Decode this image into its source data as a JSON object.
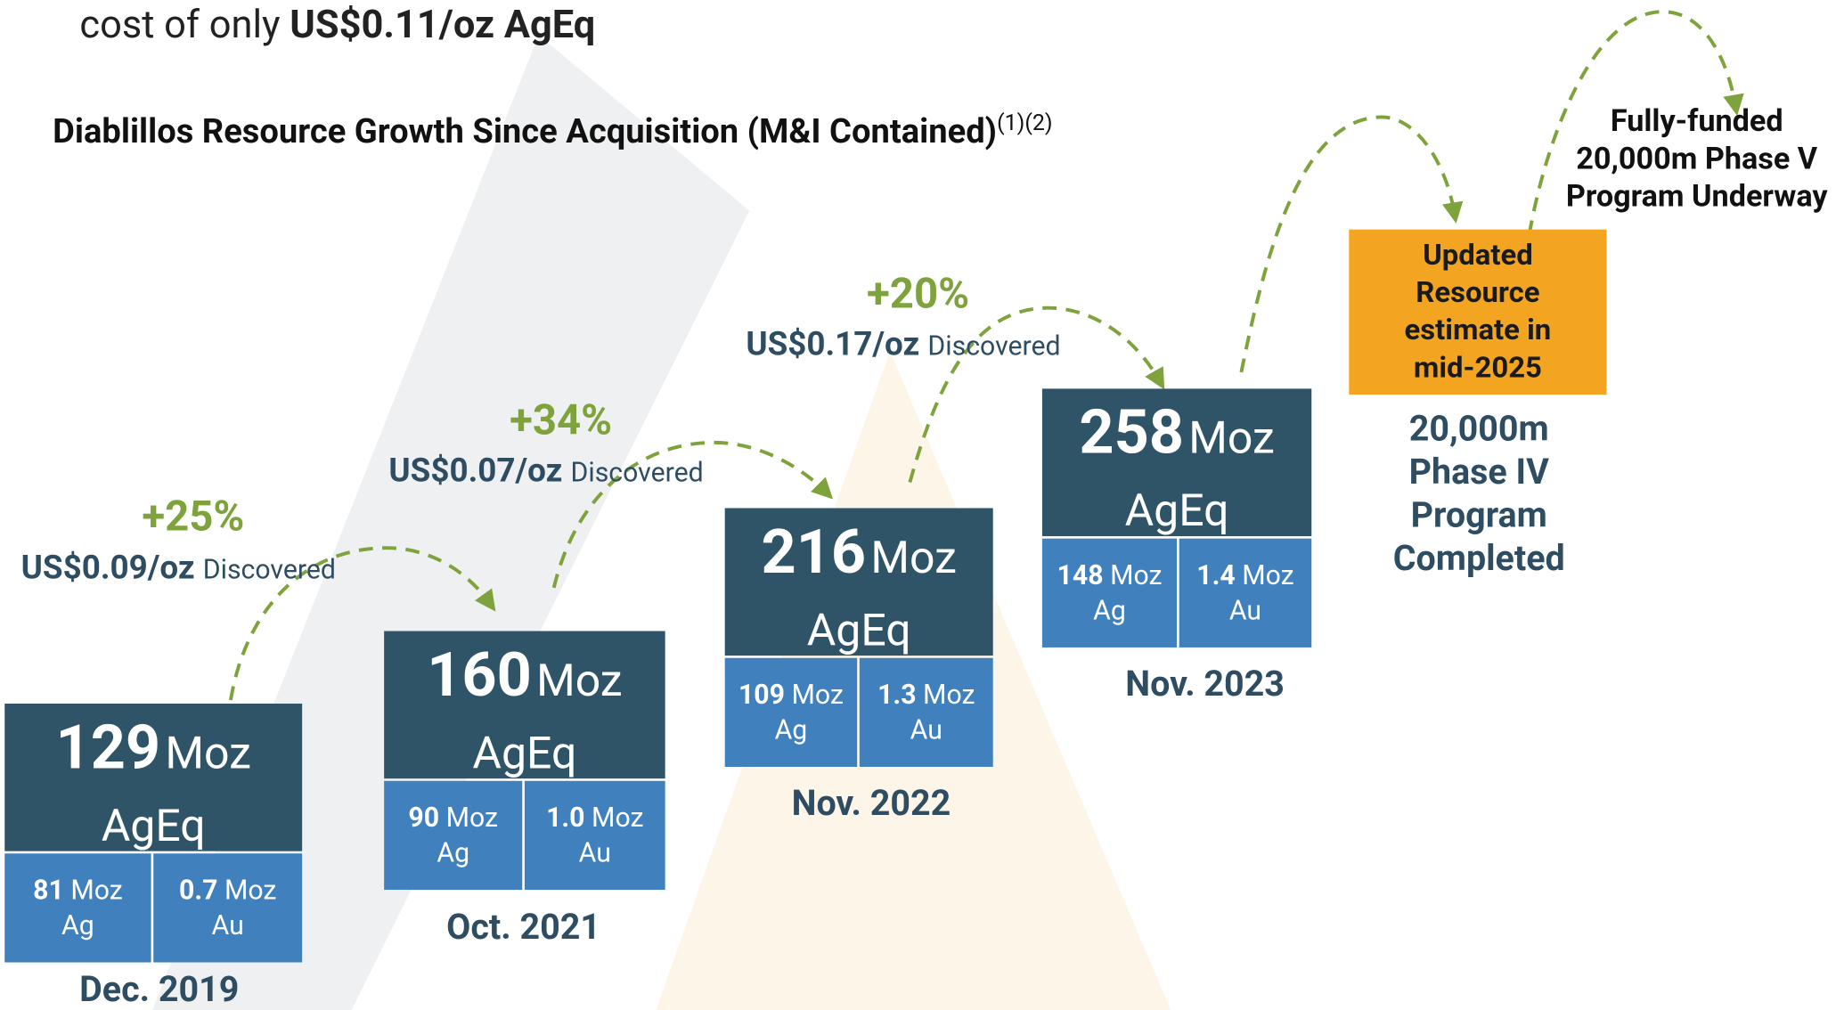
{
  "header": {
    "lead": "cost of only ",
    "emphasis": "US$0.11/oz AgEq"
  },
  "title": {
    "text": "Diablillos Resource Growth Since Acquisition (M&I Contained)",
    "superscript": "(1)(2)"
  },
  "units": {
    "total": "Moz",
    "equivalent": "AgEq",
    "ag": "Moz Ag",
    "au": "Moz Au",
    "ag_split": [
      "Moz",
      "Ag"
    ],
    "au_split": [
      "Moz",
      "Au"
    ]
  },
  "discovery_note": "Discovered",
  "stages": [
    {
      "total": "129",
      "ag": "81",
      "au": "0.7",
      "date": "Dec. 2019"
    },
    {
      "total": "160",
      "ag": "90",
      "au": "1.0",
      "date": "Oct. 2021"
    },
    {
      "total": "216",
      "ag": "109",
      "au": "1.3",
      "date": "Nov. 2022"
    },
    {
      "total": "258",
      "ag": "148",
      "au": "1.4",
      "date": "Nov. 2023"
    }
  ],
  "growth": [
    {
      "change": "+25%",
      "cost": "US$0.09/oz"
    },
    {
      "change": "+34%",
      "cost": "US$0.07/oz"
    },
    {
      "change": "+20%",
      "cost": "US$0.17/oz"
    }
  ],
  "next_step": {
    "box": [
      "Updated",
      "Resource",
      "estimate in",
      "mid-2025"
    ],
    "completed": [
      "20,000m",
      "Phase IV",
      "Program",
      "Completed"
    ],
    "underway": [
      "Fully-funded",
      "20,000m Phase V",
      "Program Underway"
    ]
  }
}
